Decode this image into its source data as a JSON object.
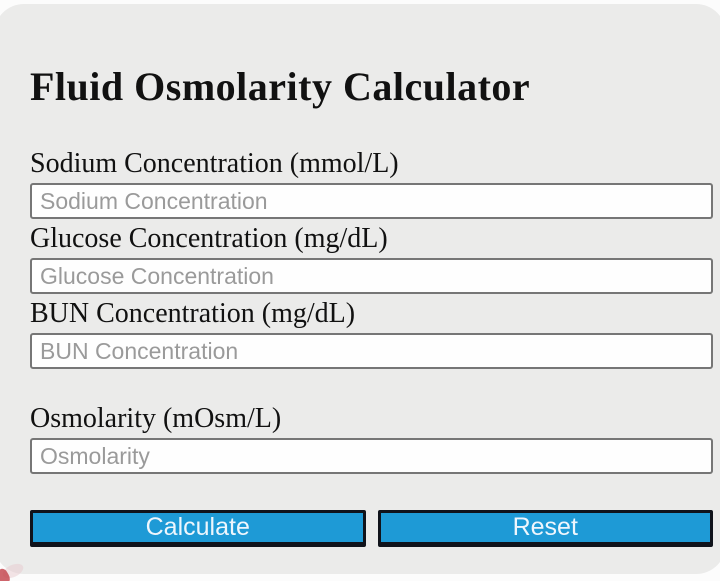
{
  "page": {
    "title": "Fluid Osmolarity Calculator"
  },
  "form": {
    "fields": [
      {
        "label": "Sodium Concentration (mmol/L)",
        "placeholder": "Sodium Concentration",
        "value": ""
      },
      {
        "label": "Glucose Concentration (mg/dL)",
        "placeholder": "Glucose Concentration",
        "value": ""
      },
      {
        "label": "BUN Concentration (mg/dL)",
        "placeholder": "BUN Concentration",
        "value": ""
      }
    ],
    "result_field": {
      "label": "Osmolarity (mOsm/L)",
      "placeholder": "Osmolarity",
      "value": ""
    },
    "buttons": {
      "calculate": "Calculate",
      "reset": "Reset"
    }
  },
  "colors": {
    "panel_background": "#ebebea",
    "page_background": "#fcfcfc",
    "button_blue": "#1e9ad6",
    "button_border": "#10131b",
    "button_text": "#eef6fd",
    "input_border": "#767676",
    "placeholder_gray": "#9a9a9a",
    "text_black": "#111111"
  }
}
